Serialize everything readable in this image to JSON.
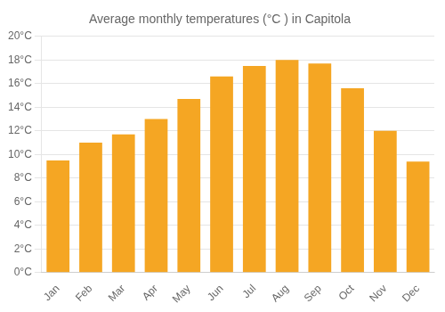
{
  "chart_data": {
    "type": "bar",
    "title": "Average monthly temperatures (°C ) in Capitola",
    "categories": [
      "Jan",
      "Feb",
      "Mar",
      "Apr",
      "May",
      "Jun",
      "Jul",
      "Aug",
      "Sep",
      "Oct",
      "Nov",
      "Dec"
    ],
    "values": [
      9.5,
      11.0,
      11.7,
      13.0,
      14.7,
      16.6,
      17.5,
      18.0,
      17.7,
      15.6,
      12.0,
      9.4
    ],
    "color": "#F5A623",
    "ylim": [
      0,
      20
    ],
    "yticks": [
      {
        "value": 0,
        "label": "0°C"
      },
      {
        "value": 2,
        "label": "2°C"
      },
      {
        "value": 4,
        "label": "4°C"
      },
      {
        "value": 6,
        "label": "6°C"
      },
      {
        "value": 8,
        "label": "8°C"
      },
      {
        "value": 10,
        "label": "10°C"
      },
      {
        "value": 12,
        "label": "12°C"
      },
      {
        "value": 14,
        "label": "14°C"
      },
      {
        "value": 16,
        "label": "16°C"
      },
      {
        "value": 18,
        "label": "18°C"
      },
      {
        "value": 20,
        "label": "20°C"
      }
    ],
    "grid": true
  }
}
